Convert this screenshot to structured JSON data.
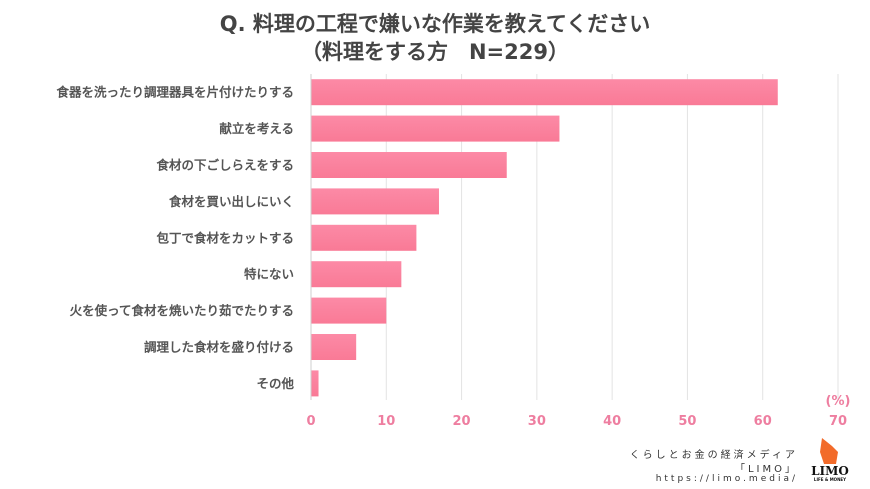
{
  "chart_data": {
    "type": "bar",
    "orientation": "horizontal",
    "title": "Q. 料理の工程で嫌いな作業を教えてください",
    "subtitle": "（料理をする方　N=229）",
    "categories": [
      "食器を洗ったり調理器具を片付けたりする",
      "献立を考える",
      "食材の下ごしらえをする",
      "食材を買い出しにいく",
      "包丁で食材をカットする",
      "特にない",
      "火を使って食材を焼いたり茹でたりする",
      "調理した食材を盛り付ける",
      "その他"
    ],
    "values": [
      62,
      33,
      26,
      17,
      14,
      12,
      10,
      6,
      1
    ],
    "xlabel": "(%)",
    "xlim": [
      0,
      70
    ],
    "xticks": [
      "0",
      "10",
      "20",
      "30",
      "40",
      "50",
      "60",
      "70"
    ],
    "grid": true,
    "colors": {
      "bar": "#fb809e",
      "tick": "#ee7ea0",
      "label": "#555555"
    }
  },
  "credit": {
    "line1": "くらしとお金の経済メディア",
    "line2": "「LIMO」",
    "line3": "https://limo.media/",
    "logo_text": "LIMO",
    "logo_sub": "LIFE & MONEY"
  }
}
